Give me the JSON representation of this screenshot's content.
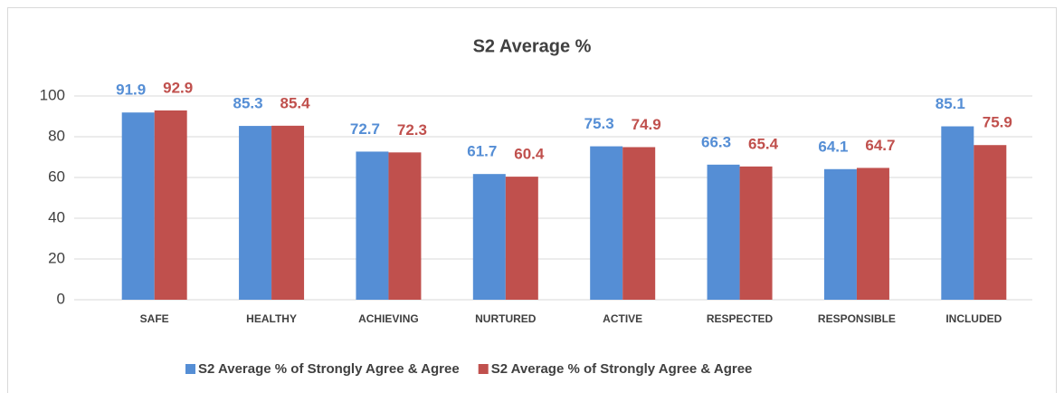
{
  "chart_data": {
    "type": "bar",
    "title": "S2 Average %",
    "categories": [
      "SAFE",
      "HEALTHY",
      "ACHIEVING",
      "NURTURED",
      "ACTIVE",
      "RESPECTED",
      "RESPONSIBLE",
      "INCLUDED"
    ],
    "series": [
      {
        "name": "S2 Average % of Strongly Agree & Agree",
        "color": "#558ed5",
        "values": [
          91.9,
          85.3,
          72.7,
          61.7,
          75.3,
          66.3,
          64.1,
          85.1
        ]
      },
      {
        "name": "S2 Average % of Strongly Agree & Agree",
        "color": "#c0504d",
        "values": [
          92.9,
          85.4,
          72.3,
          60.4,
          74.9,
          65.4,
          64.7,
          75.9
        ]
      }
    ],
    "ylim": [
      0,
      100
    ],
    "yticks": [
      0,
      20,
      40,
      60,
      80,
      100
    ],
    "grid": true,
    "legend": "bottom"
  }
}
